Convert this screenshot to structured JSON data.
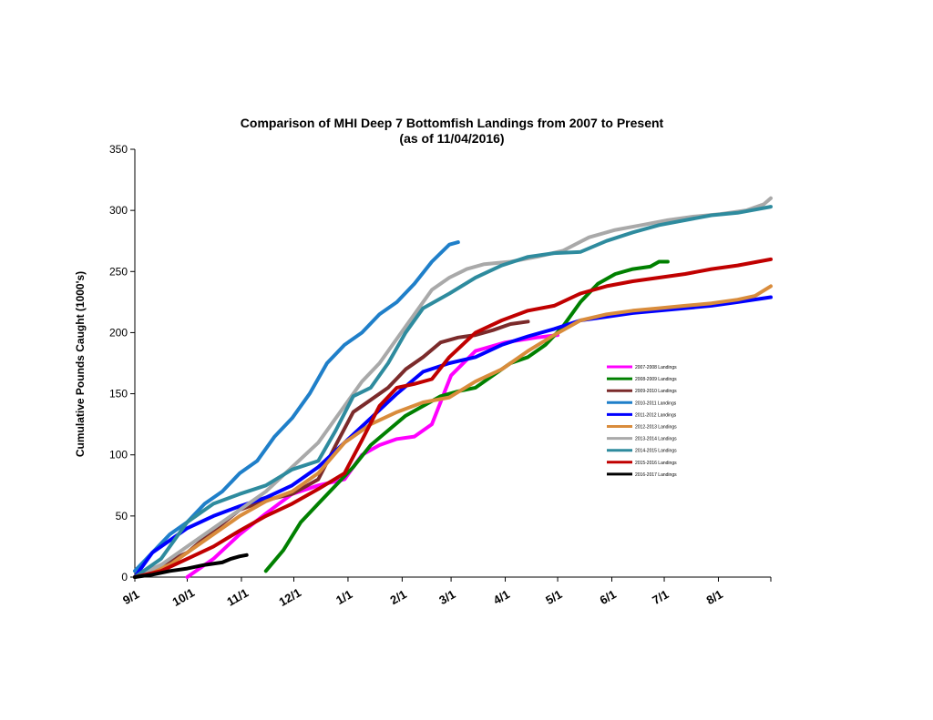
{
  "chart_data": {
    "type": "line",
    "title": "Comparison of MHI Deep 7 Bottomfish Landings from 2007 to Present",
    "subtitle": "(as of 11/04/2016)",
    "ylabel": "Cumulative Pounds Caught (1000's)",
    "xlabel": "",
    "x_ticks": [
      "9/1",
      "10/1",
      "11/1",
      "12/1",
      "1/1",
      "2/1",
      "3/1",
      "4/1",
      "5/1",
      "6/1",
      "7/1",
      "8/1"
    ],
    "x_tick_day": [
      0,
      30,
      61,
      91,
      122,
      153,
      181,
      212,
      242,
      273,
      303,
      334
    ],
    "xlim": [
      0,
      364
    ],
    "ylim": [
      0,
      350
    ],
    "y_ticks": [
      0,
      50,
      100,
      150,
      200,
      250,
      300,
      350
    ],
    "grid": false,
    "legend_position": "right",
    "series": [
      {
        "name": "2007-2008 Landings",
        "color": "#ff00ff",
        "x": [
          30,
          45,
          60,
          75,
          90,
          105,
          120,
          130,
          140,
          150,
          160,
          170,
          181,
          195,
          212,
          230,
          242
        ],
        "y": [
          0,
          15,
          35,
          52,
          68,
          75,
          80,
          100,
          108,
          113,
          115,
          125,
          165,
          185,
          192,
          196,
          198
        ]
      },
      {
        "name": "2008-2009 Landings",
        "color": "#008000",
        "x": [
          75,
          85,
          95,
          105,
          115,
          125,
          135,
          145,
          155,
          165,
          175,
          185,
          195,
          205,
          215,
          225,
          235,
          245,
          255,
          265,
          275,
          285,
          295,
          300,
          305
        ],
        "y": [
          5,
          22,
          45,
          60,
          75,
          90,
          108,
          120,
          132,
          140,
          148,
          152,
          155,
          165,
          175,
          180,
          190,
          205,
          225,
          240,
          248,
          252,
          254,
          258,
          258
        ]
      },
      {
        "name": "2009-2010 Landings",
        "color": "#7b2b2b",
        "x": [
          0,
          15,
          30,
          45,
          60,
          75,
          90,
          105,
          115,
          125,
          135,
          145,
          155,
          165,
          175,
          185,
          195,
          205,
          215,
          225
        ],
        "y": [
          0,
          10,
          20,
          38,
          55,
          63,
          68,
          80,
          108,
          135,
          145,
          155,
          170,
          180,
          192,
          196,
          198,
          202,
          207,
          209
        ]
      },
      {
        "name": "2010-2011 Landings",
        "color": "#1f7fc9",
        "x": [
          0,
          10,
          20,
          30,
          40,
          50,
          60,
          70,
          80,
          90,
          100,
          110,
          120,
          130,
          140,
          150,
          160,
          170,
          180,
          185
        ],
        "y": [
          5,
          20,
          35,
          45,
          60,
          70,
          85,
          95,
          115,
          130,
          150,
          175,
          190,
          200,
          215,
          225,
          240,
          258,
          272,
          274
        ]
      },
      {
        "name": "2011-2012 Landings",
        "color": "#0000ff",
        "x": [
          0,
          10,
          20,
          30,
          45,
          60,
          75,
          90,
          105,
          120,
          135,
          150,
          165,
          180,
          195,
          210,
          225,
          240,
          255,
          270,
          285,
          300,
          315,
          330,
          345,
          364
        ],
        "y": [
          0,
          20,
          30,
          40,
          50,
          58,
          65,
          75,
          90,
          110,
          130,
          150,
          168,
          175,
          180,
          190,
          197,
          203,
          210,
          213,
          216,
          218,
          220,
          222,
          225,
          229
        ]
      },
      {
        "name": "2012-2013 Landings",
        "color": "#d98c3c",
        "x": [
          0,
          10,
          20,
          30,
          45,
          60,
          75,
          90,
          105,
          120,
          135,
          150,
          165,
          180,
          195,
          210,
          225,
          240,
          255,
          270,
          285,
          300,
          315,
          330,
          345,
          355,
          364
        ],
        "y": [
          0,
          5,
          10,
          20,
          35,
          50,
          62,
          70,
          85,
          110,
          125,
          135,
          143,
          147,
          160,
          170,
          185,
          198,
          210,
          215,
          218,
          220,
          222,
          224,
          227,
          230,
          238
        ]
      },
      {
        "name": "2013-2014 Landings",
        "color": "#a9a9a9",
        "x": [
          0,
          15,
          30,
          45,
          60,
          75,
          90,
          105,
          120,
          130,
          140,
          150,
          160,
          170,
          180,
          190,
          200,
          215,
          230,
          245,
          260,
          275,
          290,
          305,
          320,
          335,
          350,
          360,
          364
        ],
        "y": [
          0,
          10,
          25,
          40,
          55,
          70,
          90,
          110,
          140,
          160,
          175,
          195,
          215,
          235,
          245,
          252,
          256,
          258,
          262,
          267,
          278,
          284,
          288,
          292,
          295,
          297,
          300,
          305,
          310
        ]
      },
      {
        "name": "2014-2015 Landings",
        "color": "#2e8b9e",
        "x": [
          0,
          15,
          30,
          45,
          60,
          75,
          90,
          105,
          115,
          125,
          135,
          145,
          155,
          165,
          180,
          195,
          210,
          225,
          240,
          255,
          270,
          285,
          300,
          315,
          330,
          345,
          364
        ],
        "y": [
          0,
          15,
          45,
          60,
          68,
          75,
          88,
          95,
          120,
          148,
          155,
          175,
          200,
          220,
          232,
          245,
          255,
          262,
          265,
          266,
          275,
          282,
          288,
          292,
          296,
          298,
          303
        ]
      },
      {
        "name": "2015-2016 Landings",
        "color": "#c00000",
        "x": [
          0,
          15,
          30,
          45,
          60,
          75,
          90,
          105,
          120,
          130,
          140,
          150,
          160,
          170,
          180,
          195,
          210,
          225,
          240,
          255,
          270,
          285,
          300,
          315,
          330,
          345,
          364
        ],
        "y": [
          0,
          5,
          15,
          25,
          38,
          50,
          60,
          72,
          85,
          112,
          140,
          155,
          158,
          162,
          180,
          200,
          210,
          218,
          222,
          232,
          238,
          242,
          245,
          248,
          252,
          255,
          260
        ]
      },
      {
        "name": "2016-2017 Landings",
        "color": "#000000",
        "x": [
          0,
          10,
          20,
          30,
          40,
          50,
          55,
          60,
          64
        ],
        "y": [
          0,
          2,
          5,
          7,
          10,
          12,
          15,
          17,
          18
        ]
      }
    ]
  }
}
